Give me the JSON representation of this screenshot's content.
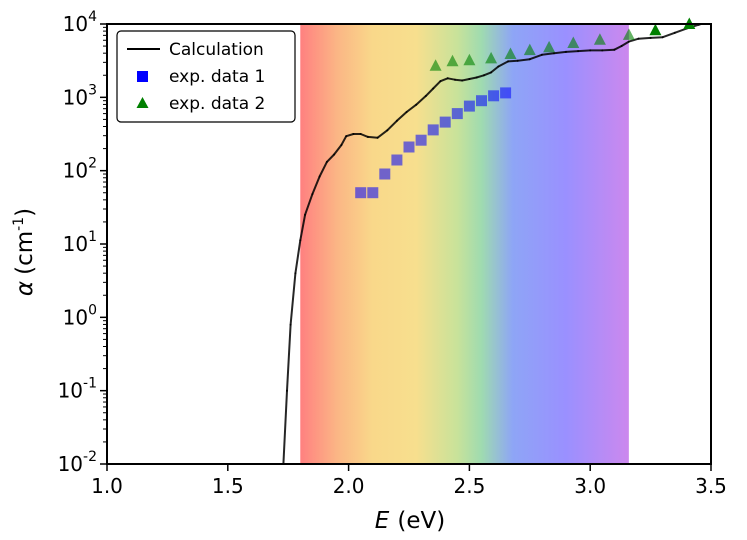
{
  "chart_data": {
    "type": "line",
    "xlabel": "E",
    "xlabel_unit": "(eV)",
    "ylabel": "α",
    "ylabel_unit_base": "(cm",
    "ylabel_unit_exp": "-1",
    "ylabel_unit_close": ")",
    "xlim": [
      1.0,
      3.5
    ],
    "ylim_log10": [
      -2,
      4
    ],
    "x_ticks": [
      1.0,
      1.5,
      2.0,
      2.5,
      3.0,
      3.5
    ],
    "x_tick_labels": [
      "1.0",
      "1.5",
      "2.0",
      "2.5",
      "3.0",
      "3.5"
    ],
    "y_ticks": [
      {
        "base": "10",
        "exp": "-2"
      },
      {
        "base": "10",
        "exp": "-1"
      },
      {
        "base": "10",
        "exp": "0"
      },
      {
        "base": "10",
        "exp": "1"
      },
      {
        "base": "10",
        "exp": "2"
      },
      {
        "base": "10",
        "exp": "3"
      },
      {
        "base": "10",
        "exp": "4"
      }
    ],
    "y_tick_log10": [
      -2,
      -1,
      0,
      1,
      2,
      3,
      4
    ],
    "visible_spectrum_band": {
      "x_range": [
        1.8,
        3.16
      ],
      "stops": [
        {
          "x": 1.8,
          "color": "#ff8080"
        },
        {
          "x": 1.95,
          "color": "#fbb585"
        },
        {
          "x": 2.1,
          "color": "#f9d88a"
        },
        {
          "x": 2.28,
          "color": "#f7df8e"
        },
        {
          "x": 2.45,
          "color": "#c8e29a"
        },
        {
          "x": 2.55,
          "color": "#9fdbb0"
        },
        {
          "x": 2.68,
          "color": "#8ea5f6"
        },
        {
          "x": 2.9,
          "color": "#9a90ff"
        },
        {
          "x": 3.16,
          "color": "#cc88ee"
        }
      ]
    },
    "legend": {
      "placement": "top-left",
      "entries": [
        {
          "label": "Calculation",
          "marker": "line",
          "color": "#000000"
        },
        {
          "label": "exp. data 1",
          "marker": "square",
          "color": "#0000ff"
        },
        {
          "label": "exp. data 2",
          "marker": "triangle",
          "color": "#008000"
        }
      ]
    },
    "series": [
      {
        "name": "Calculation",
        "style": "line",
        "color": "#000000",
        "x": [
          1.73,
          1.745,
          1.76,
          1.78,
          1.8,
          1.82,
          1.85,
          1.88,
          1.91,
          1.94,
          1.97,
          1.99,
          2.02,
          2.05,
          2.08,
          2.12,
          2.16,
          2.2,
          2.24,
          2.28,
          2.32,
          2.35,
          2.38,
          2.41,
          2.44,
          2.47,
          2.5,
          2.53,
          2.56,
          2.59,
          2.62,
          2.66,
          2.7,
          2.75,
          2.8,
          2.85,
          2.9,
          2.95,
          3.0,
          3.05,
          3.1,
          3.13,
          3.16,
          3.2,
          3.25,
          3.3,
          3.35,
          3.4,
          3.45,
          3.5
        ],
        "log10_y": [
          -2.0,
          -1.0,
          -0.1,
          0.6,
          1.05,
          1.4,
          1.68,
          1.92,
          2.12,
          2.22,
          2.35,
          2.47,
          2.5,
          2.5,
          2.46,
          2.45,
          2.55,
          2.68,
          2.8,
          2.9,
          3.02,
          3.12,
          3.22,
          3.26,
          3.24,
          3.23,
          3.25,
          3.27,
          3.3,
          3.34,
          3.42,
          3.49,
          3.5,
          3.52,
          3.58,
          3.6,
          3.62,
          3.63,
          3.64,
          3.64,
          3.65,
          3.7,
          3.76,
          3.8,
          3.81,
          3.82,
          3.88,
          3.94,
          3.99,
          4.04
        ]
      },
      {
        "name": "exp. data 1",
        "style": "square",
        "color": "#0000ff",
        "x": [
          2.05,
          2.1,
          2.15,
          2.2,
          2.25,
          2.3,
          2.35,
          2.4,
          2.45,
          2.5,
          2.55,
          2.6,
          2.65
        ],
        "y": [
          50,
          50,
          90,
          140,
          210,
          260,
          360,
          460,
          600,
          760,
          900,
          1050,
          1150
        ]
      },
      {
        "name": "exp. data 2",
        "style": "triangle",
        "color": "#008000",
        "x": [
          2.36,
          2.43,
          2.5,
          2.59,
          2.67,
          2.75,
          2.83,
          2.93,
          3.04,
          3.16,
          3.27,
          3.41
        ],
        "y": [
          2700,
          3100,
          3200,
          3400,
          3900,
          4400,
          4800,
          5500,
          6100,
          7100,
          8200,
          10000
        ]
      }
    ]
  }
}
